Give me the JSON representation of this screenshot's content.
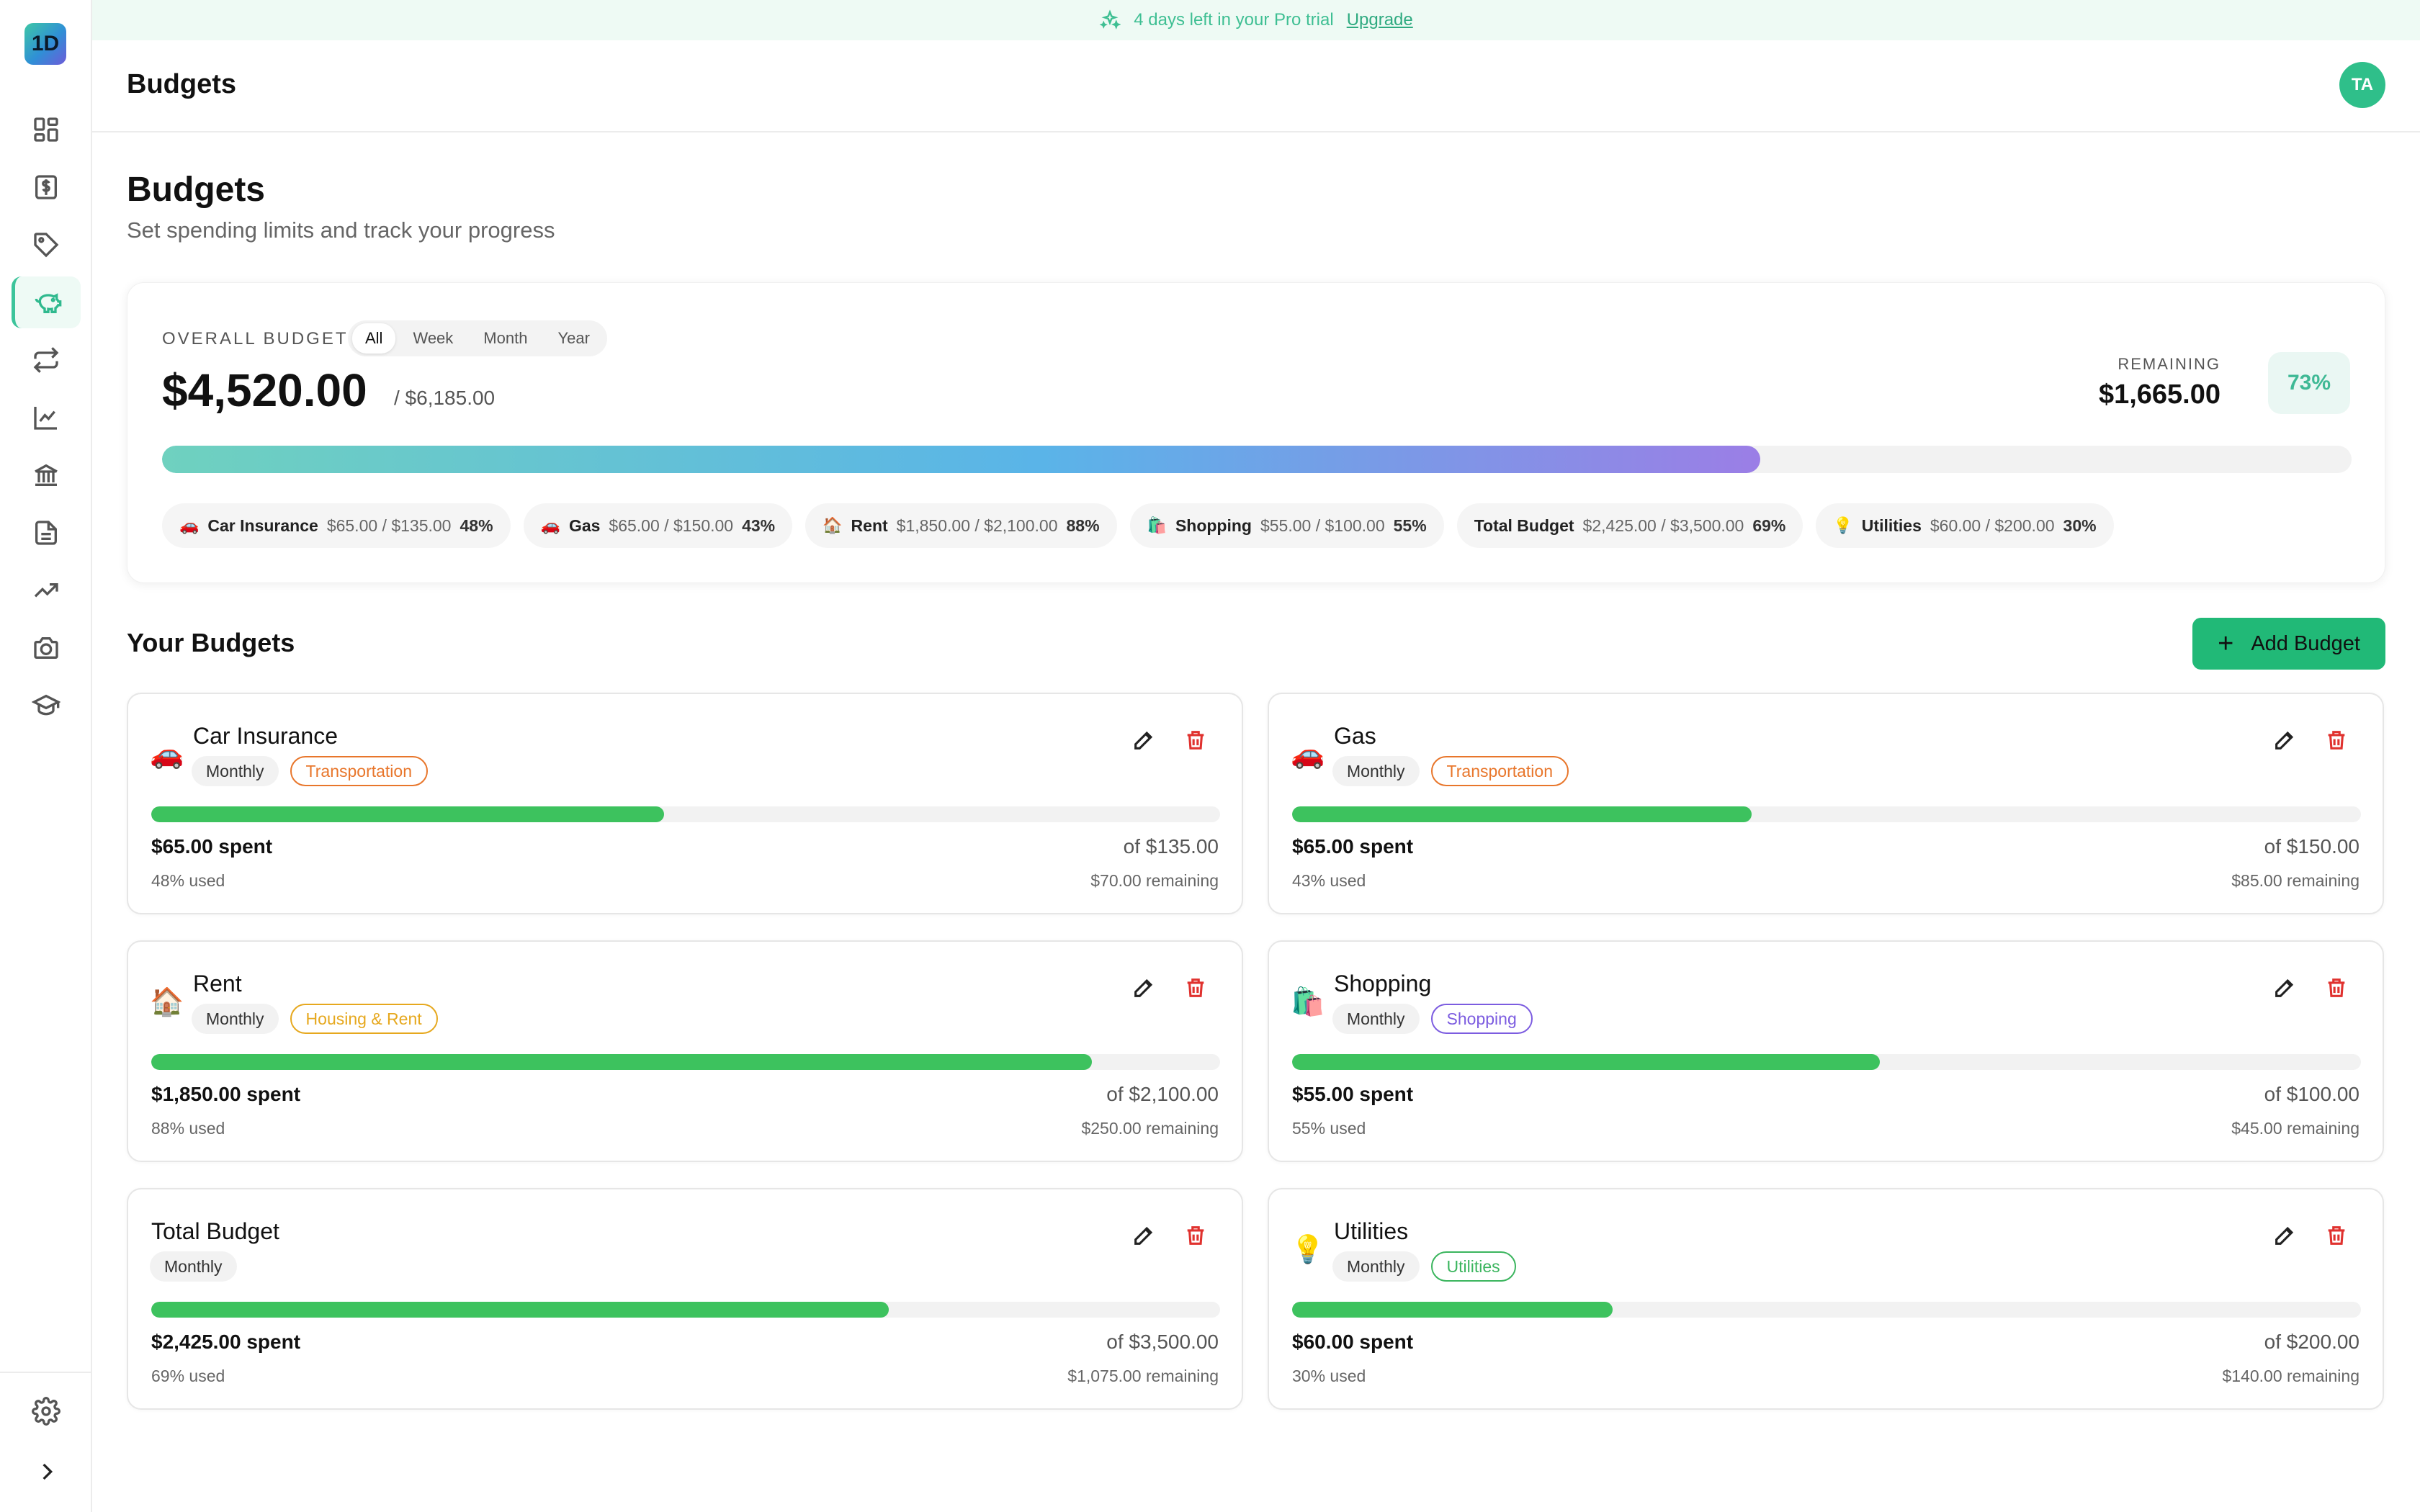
{
  "app": {
    "logo_text": "1D",
    "header_title": "Budgets",
    "avatar_initials": "TA"
  },
  "banner": {
    "text": "4 days left in your Pro trial",
    "link": "Upgrade"
  },
  "sidebar": {
    "items": [
      {
        "icon": "dashboard-icon",
        "active": false
      },
      {
        "icon": "dollar-document-icon",
        "active": false
      },
      {
        "icon": "tag-icon",
        "active": false
      },
      {
        "icon": "piggy-bank-icon",
        "active": true
      },
      {
        "icon": "transfer-arrows-icon",
        "active": false
      },
      {
        "icon": "line-chart-icon",
        "active": false
      },
      {
        "icon": "bank-icon",
        "active": false
      },
      {
        "icon": "document-icon",
        "active": false
      },
      {
        "icon": "trending-up-icon",
        "active": false
      },
      {
        "icon": "camera-icon",
        "active": false
      },
      {
        "icon": "graduation-cap-icon",
        "active": false
      }
    ],
    "settings_icon": "gear-icon",
    "expand_icon": "chevron-right-icon"
  },
  "page": {
    "title": "Budgets",
    "subtitle": "Set spending limits and track your progress"
  },
  "overview": {
    "label": "OVERALL BUDGET",
    "periods": [
      "All",
      "Week",
      "Month",
      "Year"
    ],
    "active_period": "All",
    "spent": "$4,520.00",
    "total": "/ $6,185.00",
    "remaining_label": "REMAINING",
    "remaining": "$1,665.00",
    "percent_label": "73%",
    "progress_fraction": 0.73,
    "chips": [
      {
        "emoji": "🚗",
        "name": "Car Insurance",
        "amount": "$65.00 / $135.00",
        "pct": "48%"
      },
      {
        "emoji": "🚗",
        "name": "Gas",
        "amount": "$65.00 / $150.00",
        "pct": "43%"
      },
      {
        "emoji": "🏠",
        "name": "Rent",
        "amount": "$1,850.00 / $2,100.00",
        "pct": "88%"
      },
      {
        "emoji": "🛍️",
        "name": "Shopping",
        "amount": "$55.00 / $100.00",
        "pct": "55%"
      },
      {
        "emoji": "",
        "name": "Total Budget",
        "amount": "$2,425.00 / $3,500.00",
        "pct": "69%"
      },
      {
        "emoji": "💡",
        "name": "Utilities",
        "amount": "$60.00 / $200.00",
        "pct": "30%"
      }
    ]
  },
  "budgets_section": {
    "title": "Your Budgets",
    "add_label": "Add Budget"
  },
  "budgets": [
    {
      "emoji": "🚗",
      "name": "Car Insurance",
      "frequency": "Monthly",
      "category": "Transportation",
      "category_color": "#e8762b",
      "spent": "$65.00 spent",
      "of": "of $135.00",
      "used": "48% used",
      "remaining": "$70.00 remaining",
      "fraction": 0.48
    },
    {
      "emoji": "🚗",
      "name": "Gas",
      "frequency": "Monthly",
      "category": "Transportation",
      "category_color": "#e8762b",
      "spent": "$65.00 spent",
      "of": "of $150.00",
      "used": "43% used",
      "remaining": "$85.00 remaining",
      "fraction": 0.43
    },
    {
      "emoji": "🏠",
      "name": "Rent",
      "frequency": "Monthly",
      "category": "Housing & Rent",
      "category_color": "#e6a81e",
      "spent": "$1,850.00 spent",
      "of": "of $2,100.00",
      "used": "88% used",
      "remaining": "$250.00 remaining",
      "fraction": 0.88
    },
    {
      "emoji": "🛍️",
      "name": "Shopping",
      "frequency": "Monthly",
      "category": "Shopping",
      "category_color": "#7c5ce0",
      "spent": "$55.00 spent",
      "of": "of $100.00",
      "used": "55% used",
      "remaining": "$45.00 remaining",
      "fraction": 0.55
    },
    {
      "emoji": "",
      "name": "Total Budget",
      "frequency": "Monthly",
      "category": "",
      "category_color": "",
      "spent": "$2,425.00 spent",
      "of": "of $3,500.00",
      "used": "69% used",
      "remaining": "$1,075.00 remaining",
      "fraction": 0.69
    },
    {
      "emoji": "💡",
      "name": "Utilities",
      "frequency": "Monthly",
      "category": "Utilities",
      "category_color": "#3bb55e",
      "spent": "$60.00 spent",
      "of": "of $200.00",
      "used": "30% used",
      "remaining": "$140.00 remaining",
      "fraction": 0.3
    }
  ],
  "colors": {
    "accent": "#2fbf8a",
    "progress_green": "#3dc25e",
    "delete_red": "#e0322f"
  }
}
